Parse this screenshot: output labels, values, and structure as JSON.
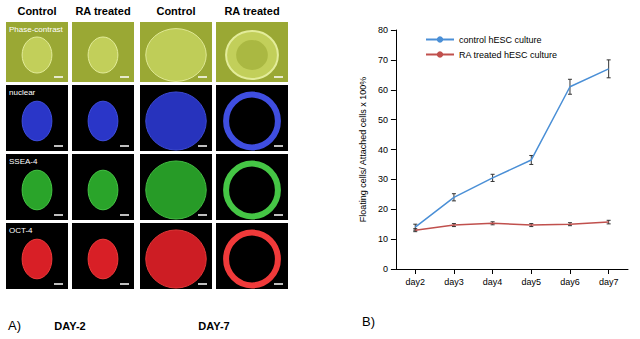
{
  "panel_a": {
    "label": "A)",
    "column_headers": [
      "Control",
      "RA treated",
      "Control",
      "RA treated"
    ],
    "row_labels": [
      "Phase-contrast",
      "nuclear",
      "SSEA-4",
      "OCT-4"
    ],
    "day_labels": [
      "DAY-2",
      "DAY-7"
    ]
  },
  "chart_data": {
    "type": "line",
    "annotations": [
      "B)"
    ],
    "y_label": "Floating cells/ Attached cells x 100%",
    "categories": [
      "day2",
      "day3",
      "day4",
      "day5",
      "day6",
      "day7"
    ],
    "series": [
      {
        "name": "control hESC culture",
        "color": "#4a8fd6",
        "values": [
          14,
          24,
          30.5,
          36.5,
          61,
          67
        ],
        "errors": [
          1,
          1.2,
          1.2,
          1.5,
          2.5,
          3
        ]
      },
      {
        "name": "RA treated hESC culture",
        "color": "#c0504d",
        "values": [
          13,
          14.7,
          15.3,
          14.7,
          15,
          15.7
        ],
        "errors": [
          0.5,
          0.5,
          0.5,
          0.5,
          0.5,
          0.6
        ]
      }
    ],
    "ylim": [
      0,
      80
    ],
    "yticks": [
      0,
      10,
      20,
      30,
      40,
      50,
      60,
      70,
      80
    ],
    "grid": false,
    "legend": "top",
    "marker": "none"
  }
}
